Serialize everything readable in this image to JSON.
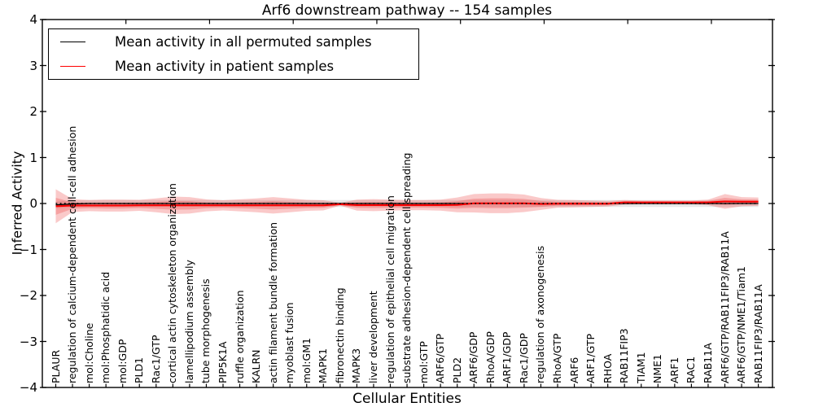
{
  "chart_data": {
    "type": "line",
    "title": "Arf6 downstream pathway -- 154 samples",
    "xlabel": "Cellular Entities",
    "ylabel": "Inferred Activity",
    "ylim": [
      -4,
      4
    ],
    "yticks": [
      4,
      3,
      2,
      1,
      0,
      -1,
      -2,
      -3,
      -4
    ],
    "legend_position": "upper left",
    "grid": false,
    "zero_reference_line": 0,
    "categories": [
      "PLAUR",
      "regulation of calcium-dependent cell-cell adhesion",
      "mol:Choline",
      "mol:Phosphatidic acid",
      "mol:GDP",
      "PLD1",
      "Rac1/GTP",
      "cortical actin cytoskeleton organization",
      "lamellipodium assembly",
      "tube morphogenesis",
      "PIP5K1A",
      "ruffle organization",
      "KALRN",
      "actin filament bundle formation",
      "myoblast fusion",
      "mol:GM1",
      "MAPK1",
      "fibronectin binding",
      "MAPK3",
      "liver development",
      "regulation of epithelial cell migration",
      "substrate adhesion-dependent cell spreading",
      "mol:GTP",
      "ARF6/GTP",
      "PLD2",
      "ARF6/GDP",
      "RhoA/GDP",
      "ARF1/GDP",
      "Rac1/GDP",
      "regulation of axonogenesis",
      "RhoA/GTP",
      "ARF6",
      "ARF1/GTP",
      "RHOA",
      "RAB11FIP3",
      "TIAM1",
      "NME1",
      "ARF1",
      "RAC1",
      "RAB11A",
      "ARF6/GTP/RAB11FIP3/RAB11A",
      "ARF6/GTP/NME1/Tiam1",
      "RAB11FIP3/RAB11A"
    ],
    "series": [
      {
        "name": "Mean activity in all permuted samples",
        "color": "#000000",
        "style": "solid",
        "values": [
          -0.03,
          -0.01,
          0,
          0,
          0,
          0,
          0,
          0,
          0,
          0,
          0,
          0,
          0,
          0,
          0,
          0,
          0,
          0,
          0,
          0,
          0,
          0,
          0,
          0,
          0,
          0,
          0,
          0,
          0,
          0,
          0,
          0,
          0,
          0,
          0,
          0,
          0,
          0,
          0,
          0,
          0,
          0,
          0
        ],
        "band_halfwidth": [
          0.075,
          0.075,
          0.075,
          0.075,
          0.075,
          0.075,
          0.075,
          0.075,
          0.075,
          0.075,
          0.075,
          0.075,
          0.075,
          0.075,
          0.075,
          0.075,
          0.075,
          0.075,
          0.075,
          0.075,
          0.075,
          0.075,
          0.075,
          0.075,
          0.075,
          0.075,
          0.075,
          0.075,
          0.075,
          0.075,
          0.075,
          0.075,
          0.075,
          0.075,
          0.075,
          0.075,
          0.075,
          0.075,
          0.075,
          0.075,
          0.075,
          0.075,
          0.075
        ],
        "band_color": "rgba(120,120,120,0.18)"
      },
      {
        "name": "Mean activity in patient samples",
        "color": "#ff0000",
        "style": "solid",
        "values": [
          -0.06,
          -0.045,
          -0.045,
          -0.045,
          -0.045,
          -0.04,
          -0.04,
          -0.04,
          -0.04,
          -0.04,
          -0.04,
          -0.04,
          -0.04,
          -0.04,
          -0.04,
          -0.04,
          -0.04,
          -0.015,
          -0.035,
          -0.035,
          -0.035,
          -0.035,
          -0.035,
          -0.035,
          -0.03,
          0.005,
          0.005,
          0.005,
          0.005,
          -0.01,
          -0.005,
          -0.005,
          -0.005,
          -0.005,
          0.025,
          0.025,
          0.025,
          0.025,
          0.025,
          0.025,
          0.045,
          0.04,
          0.04
        ],
        "band_halfwidth": [
          0.37,
          0.14,
          0.12,
          0.13,
          0.13,
          0.12,
          0.15,
          0.19,
          0.18,
          0.13,
          0.11,
          0.13,
          0.15,
          0.18,
          0.15,
          0.12,
          0.11,
          0.03,
          0.12,
          0.13,
          0.12,
          0.11,
          0.11,
          0.12,
          0.16,
          0.2,
          0.215,
          0.215,
          0.19,
          0.13,
          0.085,
          0.08,
          0.07,
          0.06,
          0.05,
          0.04,
          0.04,
          0.04,
          0.04,
          0.06,
          0.16,
          0.1,
          0.09
        ],
        "band_color": "rgba(235,45,45,0.26)"
      }
    ],
    "colors": {
      "zero_line": "#000000",
      "frame": "#000000",
      "background": "#ffffff"
    }
  }
}
